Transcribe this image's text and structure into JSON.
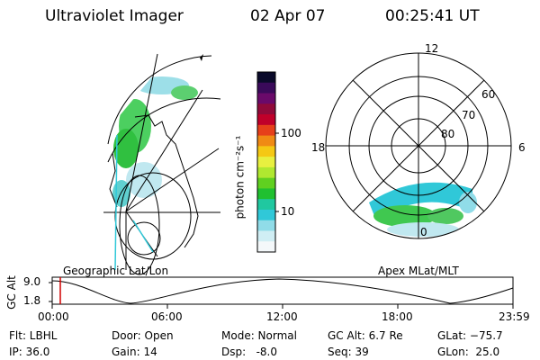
{
  "header": {
    "title": "Ultraviolet Imager",
    "date": "02 Apr 07",
    "time": "00:25:41 UT"
  },
  "geo_panel": {
    "label": "Geographic Lat/Lon"
  },
  "apex_panel": {
    "label": "Apex MLat/MLT",
    "mlt_labels": {
      "top": "12",
      "left": "18",
      "right": "6",
      "bottom": "0"
    },
    "lat_labels": [
      "60",
      "70",
      "80"
    ]
  },
  "colorbar": {
    "unit": "photon cm⁻²s⁻¹",
    "ticks": [
      "100",
      "10"
    ],
    "colors": [
      "#0a0a2a",
      "#3a0a5a",
      "#6a0a6a",
      "#900a3a",
      "#c0002a",
      "#e6401a",
      "#f08a14",
      "#f5c814",
      "#e8f040",
      "#b0e830",
      "#60d020",
      "#20c030",
      "#20c8a0",
      "#30c8d8",
      "#90dce8",
      "#d0eef4",
      "#f4f8fa"
    ]
  },
  "timeline": {
    "axis_label": "GC Alt",
    "y_ticks": [
      "9.0",
      "1.8"
    ],
    "x_ticks": [
      "00:00",
      "06:00",
      "12:00",
      "18:00",
      "23:59"
    ]
  },
  "status": {
    "flt": "Flt: LBHL",
    "ip": "IP: 36.0",
    "door": "Door: Open",
    "gain": "Gain: 14",
    "mode": "Mode: Normal",
    "dsp": "Dsp:   -8.0",
    "gcalt": "GC Alt: 6.7 Re",
    "seq": "Seq: 39",
    "glat": "GLat: −75.7",
    "glon": "GLon:  25.0"
  }
}
